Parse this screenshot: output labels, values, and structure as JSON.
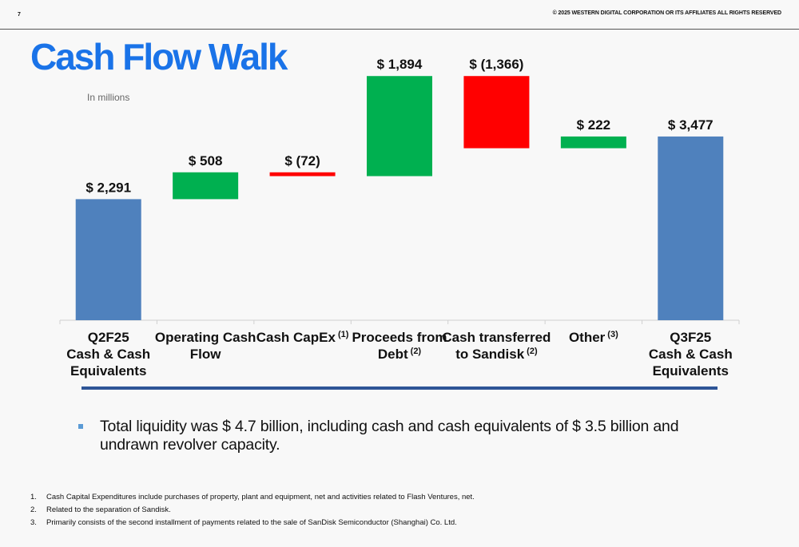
{
  "page_number": "7",
  "copyright": "© 2025 WESTERN DIGITAL CORPORATION OR ITS AFFILIATES  ALL RIGHTS RESERVED",
  "title": "Cash Flow Walk",
  "units": "In millions",
  "colors": {
    "title": "#1a73e8",
    "total": "#4f81bd",
    "increase": "#00b050",
    "decrease": "#ff0000",
    "divider": "#2e5597"
  },
  "chart_data": {
    "type": "bar",
    "subtype": "waterfall",
    "categories": [
      {
        "lines": [
          "Q2F25",
          "Cash & Cash",
          "Equivalents"
        ],
        "sup": ""
      },
      {
        "lines": [
          "Operating Cash",
          "Flow"
        ],
        "sup": ""
      },
      {
        "lines": [
          "Cash CapEx"
        ],
        "sup": "(1)"
      },
      {
        "lines": [
          "Proceeds from",
          "Debt"
        ],
        "sup": "(2)"
      },
      {
        "lines": [
          "Cash transferred",
          "to Sandisk"
        ],
        "sup": "(2)"
      },
      {
        "lines": [
          "Other"
        ],
        "sup": "(3)"
      },
      {
        "lines": [
          "Q3F25",
          "Cash & Cash",
          "Equivalents"
        ],
        "sup": ""
      }
    ],
    "values": [
      2291,
      508,
      -72,
      1894,
      -1366,
      222,
      3477
    ],
    "kinds": [
      "total",
      "increase",
      "decrease",
      "increase",
      "decrease",
      "increase",
      "total"
    ],
    "value_labels": [
      "$ 2,291",
      "$ 508",
      "$ (72)",
      "$ 1,894",
      "$ (1,366)",
      "$ 222",
      "$ 3,477"
    ],
    "ylim": [
      0,
      4700
    ]
  },
  "bullet": "Total liquidity was $ 4.7 billion, including cash and cash equivalents of $ 3.5 billion and undrawn revolver capacity.",
  "footnotes": [
    {
      "num": "1.",
      "text": "Cash Capital Expenditures include purchases of property, plant and equipment, net and activities related to Flash Ventures, net."
    },
    {
      "num": "2.",
      "text": "Related to the separation of Sandisk."
    },
    {
      "num": "3.",
      "text": "Primarily consists of the second installment of payments related to the sale of SanDisk Semiconductor (Shanghai) Co. Ltd."
    }
  ]
}
